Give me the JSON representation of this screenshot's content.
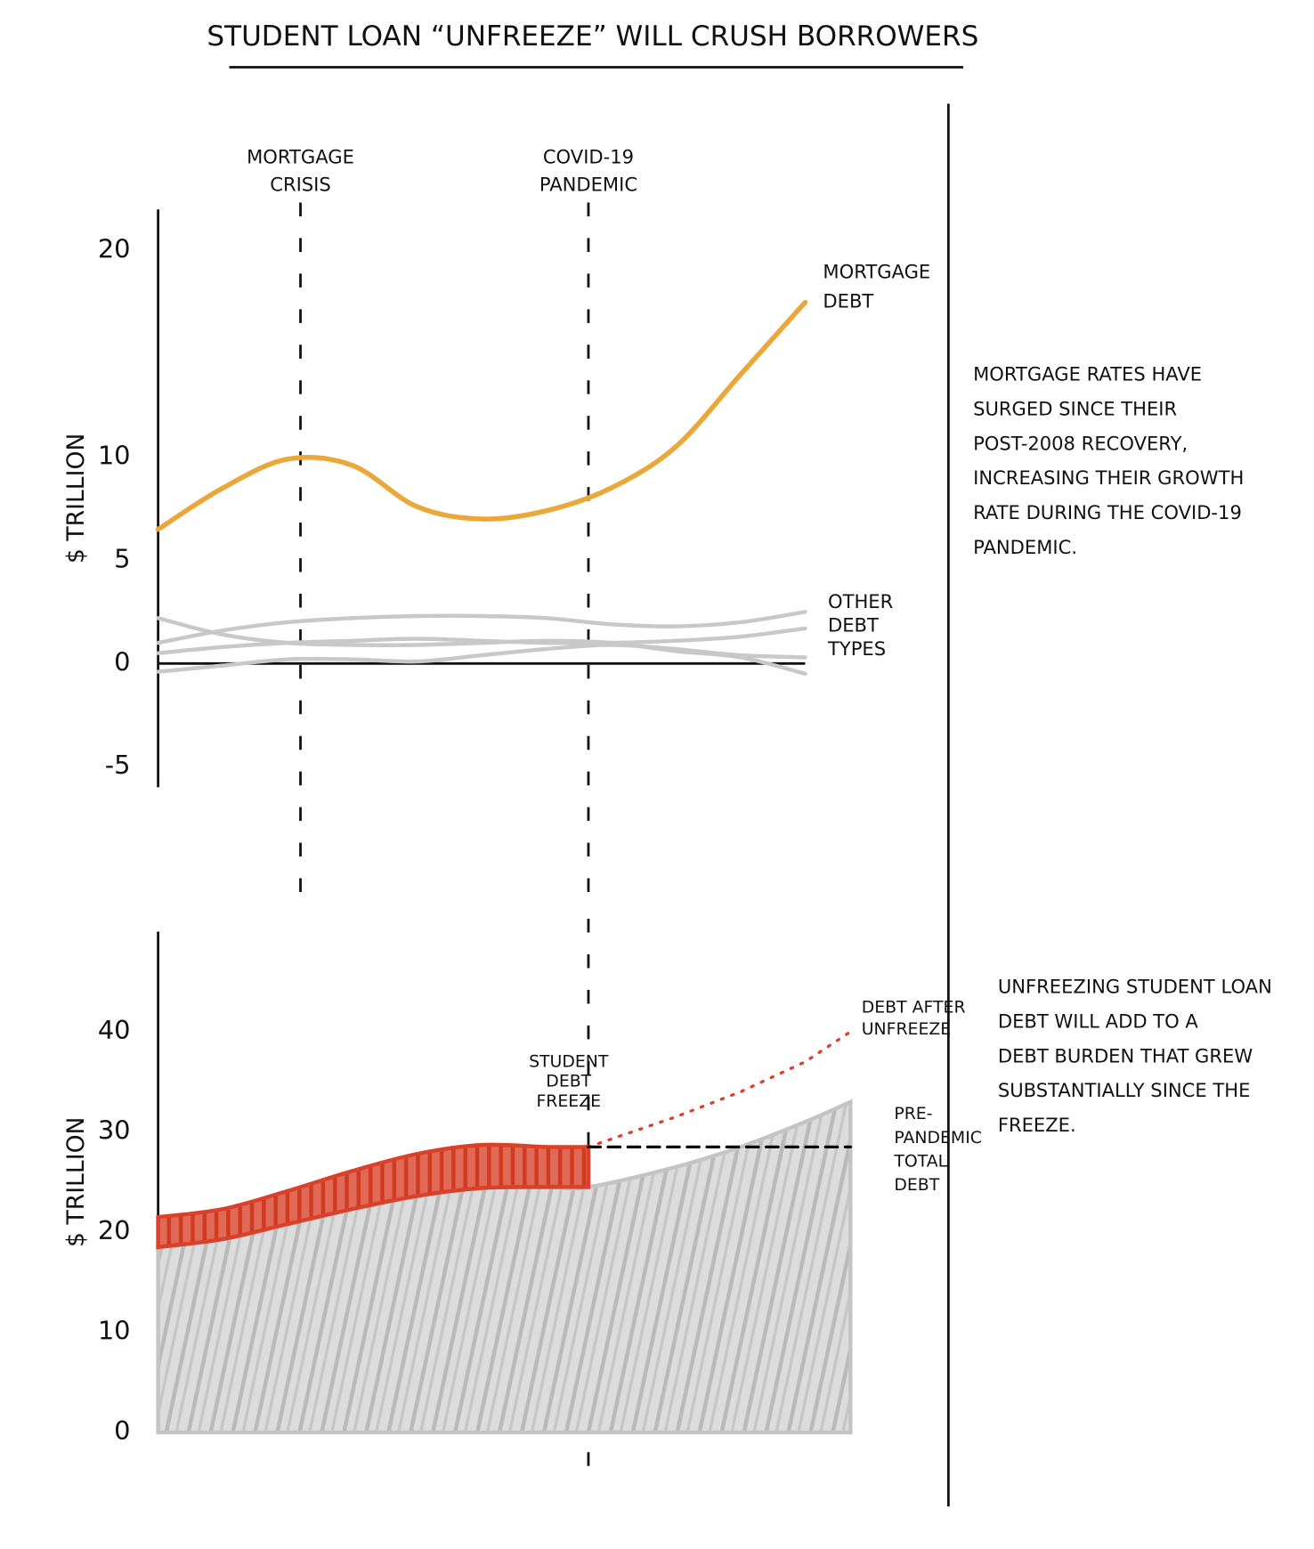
{
  "title": "STUDENT LOAN “UNFREEZE” WILL CRUSH BORROWERS",
  "chart_data": [
    {
      "type": "line",
      "ylabel": "$ TRILLION",
      "x": [
        0,
        2,
        4,
        6,
        8,
        10,
        12,
        14,
        16,
        18,
        20
      ],
      "xlim": [
        0,
        20
      ],
      "ylim": [
        -6,
        22
      ],
      "yticks": [
        -5,
        0,
        5,
        10,
        20
      ],
      "series": [
        {
          "name": [
            "MORTGAGE",
            "DEBT"
          ],
          "color": "#eba83a",
          "values": [
            6.5,
            8.5,
            9.9,
            9.6,
            7.6,
            7,
            7.4,
            8.5,
            10.5,
            14,
            17.5
          ]
        },
        {
          "color": "#c8c8c8",
          "values": [
            1.0,
            1.6,
            2.0,
            2.2,
            2.3,
            2.3,
            2.2,
            1.9,
            1.8,
            2.0,
            2.5
          ]
        },
        {
          "color": "#c8c8c8",
          "values": [
            2.2,
            1.4,
            1.0,
            0.9,
            0.9,
            1.0,
            1.1,
            1.0,
            0.6,
            0.3,
            -0.5
          ]
        },
        {
          "color": "#c8c8c8",
          "values": [
            0.5,
            0.8,
            1.0,
            1.1,
            1.2,
            1.1,
            1.0,
            1.0,
            1.1,
            1.3,
            1.7
          ]
        },
        {
          "color": "#c8c8c8",
          "values": [
            -0.4,
            -0.1,
            0.2,
            0.2,
            0.1,
            0.4,
            0.7,
            0.9,
            0.7,
            0.4,
            0.3
          ]
        }
      ],
      "annotations": [
        {
          "text": [
            "MORTGAGE",
            "CRISIS"
          ],
          "x": 4.4
        },
        {
          "text": [
            "COVID-19",
            "PANDEMIC"
          ],
          "x": 13.3
        },
        {
          "text": [
            "OTHER",
            "DEBT",
            "TYPES"
          ]
        }
      ],
      "note": [
        "MORTGAGE RATES HAVE",
        "SURGED SINCE THEIR",
        "POST-2008 RECOVERY,",
        "INCREASING THEIR GROWTH",
        "RATE DURING THE COVID-19",
        "PANDEMIC."
      ]
    },
    {
      "type": "area",
      "ylabel": "$ TRILLION",
      "x": [
        0,
        2,
        4,
        6,
        8,
        10,
        12,
        13.3,
        16,
        18,
        20,
        21.4
      ],
      "xlim": [
        0,
        20
      ],
      "ylim": [
        0,
        50
      ],
      "yticks": [
        0,
        10,
        20,
        30,
        40
      ],
      "series": [
        {
          "color": "#c4c4c4",
          "values": [
            18.5,
            19.3,
            20.8,
            22.3,
            23.6,
            24.4,
            24.5,
            24.5,
            26.5,
            28.5,
            31,
            33
          ]
        },
        {
          "color": "#d9412b",
          "stacked": true,
          "values": [
            3,
            3,
            3.3,
            3.8,
            4.2,
            4.3,
            4,
            4,
            null,
            null,
            null,
            null
          ]
        },
        {
          "name": [
            "DEBT AFTER",
            "UNFREEZE"
          ],
          "color": "#d9412b",
          "style": "dotted",
          "values": [
            null,
            null,
            null,
            null,
            null,
            null,
            null,
            28.5,
            31.5,
            34,
            37,
            40
          ]
        },
        {
          "name": [
            "PRE-",
            "PANDEMIC",
            "TOTAL",
            "DEBT"
          ],
          "color": "#000000",
          "style": "dashed",
          "values": [
            null,
            null,
            null,
            null,
            null,
            null,
            null,
            28.5,
            28.5,
            28.5,
            28.5,
            28.5
          ]
        }
      ],
      "annotations": [
        {
          "text": [
            "STUDENT",
            "DEBT",
            "FREEZE"
          ],
          "x": 13.3
        }
      ],
      "note": [
        "UNFREEZING STUDENT LOAN",
        "DEBT WILL ADD TO A",
        "DEBT BURDEN THAT GREW",
        "SUBSTANTIALLY SINCE THE",
        "FREEZE."
      ]
    }
  ]
}
